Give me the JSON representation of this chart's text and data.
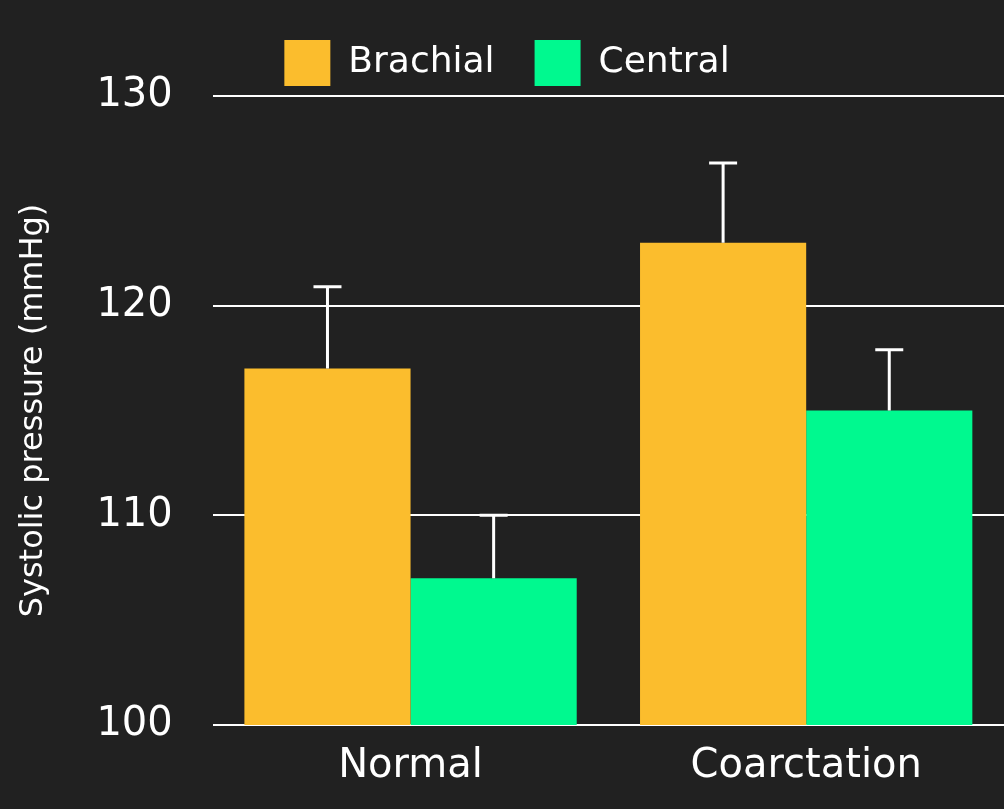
{
  "chart_data": {
    "type": "bar",
    "ylabel": "Systolic pressure (mmHg)",
    "categories": [
      "Normal",
      "Coarctation"
    ],
    "series": [
      {
        "name": "Brachial",
        "color": "#fbbd2d",
        "values": [
          117,
          123
        ],
        "errors": [
          [
            117,
            120.9
          ],
          [
            123,
            126.8
          ]
        ]
      },
      {
        "name": "Central",
        "color": "#00f98f",
        "values": [
          107,
          115
        ],
        "errors": [
          [
            107,
            110
          ],
          [
            115,
            117.9
          ]
        ]
      }
    ],
    "ylim": [
      100,
      130
    ],
    "yticks": [
      100,
      110,
      120,
      130
    ],
    "grid": "y",
    "legend": "top"
  }
}
